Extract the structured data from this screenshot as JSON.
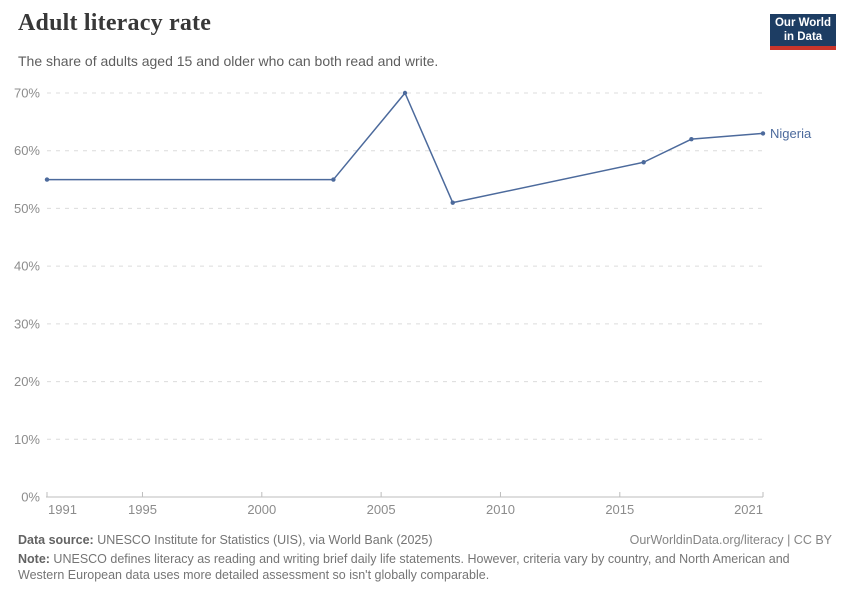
{
  "header": {
    "title": "Adult literacy rate",
    "subtitle": "The share of adults aged 15 and older who can both read and write.",
    "logo": {
      "line1": "Our World",
      "line2": "in Data"
    }
  },
  "chart_data": {
    "type": "line",
    "title": "Adult literacy rate",
    "x": [
      1991,
      2003,
      2006,
      2008,
      2016,
      2018,
      2021
    ],
    "series": [
      {
        "name": "Nigeria",
        "color": "#4C6A9C",
        "values": [
          55,
          55,
          70,
          51,
          58,
          62,
          63
        ]
      }
    ],
    "x_ticks": [
      "1991",
      "1995",
      "2000",
      "2005",
      "2010",
      "2015",
      "2021"
    ],
    "y_ticks": [
      0,
      10,
      20,
      30,
      40,
      50,
      60,
      70
    ],
    "y_suffix": "%",
    "xlim": [
      1991,
      2021
    ],
    "ylim": [
      0,
      70
    ],
    "grid": "horizontal-dashed",
    "legend_position": "end-of-line-label"
  },
  "footer": {
    "source_label": "Data source:",
    "source_text": " UNESCO Institute for Statistics (UIS), via World Bank (2025)",
    "rights": "OurWorldinData.org/literacy | CC BY",
    "note_label": "Note:",
    "note_text": " UNESCO defines literacy as reading and writing brief daily life statements. However, criteria vary by country, and North American and Western European data uses more detailed assessment so isn't globally comparable."
  },
  "colors": {
    "accent_line": "#4C6A9C",
    "grid": "#dcdcdc",
    "axis": "#bdbdbd",
    "tick_text": "#8c8c8c",
    "logo_bg": "#1d3d63",
    "logo_accent": "#c9352b"
  }
}
